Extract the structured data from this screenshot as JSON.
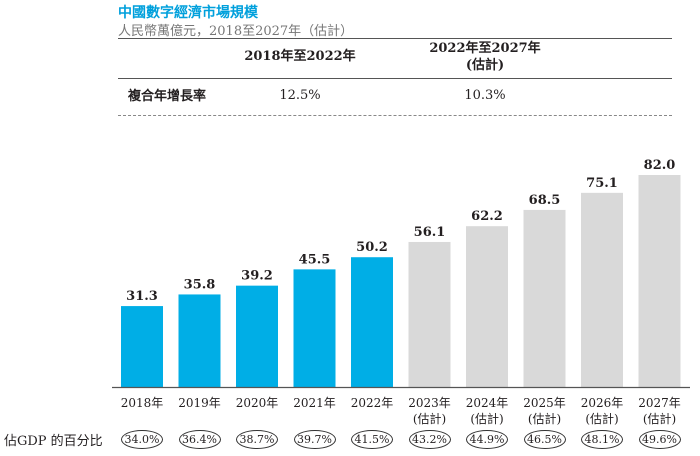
{
  "title": "中國數字經濟市場規模",
  "subtitle": "人民幣萬億元，2018至2027年（估計）",
  "cagr_table": {
    "columns": [
      "2018年至2022年",
      "2022年至2027年\n(估計)"
    ],
    "row_label": "複合年增長率",
    "values": [
      "12.5%",
      "10.3%"
    ]
  },
  "gdp_label": "佔GDP 的百分比",
  "colors": {
    "actual": "#00aee6",
    "forecast": "#d9d9d9",
    "title": "#00a0dc"
  },
  "chart_data": {
    "type": "bar",
    "categories": [
      "2018年",
      "2019年",
      "2020年",
      "2021年",
      "2022年",
      "2023年\n(估計)",
      "2024年\n(估計)",
      "2025年\n(估計)",
      "2026年\n(估計)",
      "2027年\n(估計)"
    ],
    "values": [
      31.3,
      35.8,
      39.2,
      45.5,
      50.2,
      56.1,
      62.2,
      68.5,
      75.1,
      82.0
    ],
    "value_labels": [
      "31.3",
      "35.8",
      "39.2",
      "45.5",
      "50.2",
      "56.1",
      "62.2",
      "68.5",
      "75.1",
      "82.0"
    ],
    "forecast": [
      false,
      false,
      false,
      false,
      false,
      true,
      true,
      true,
      true,
      true
    ],
    "gdp_share": [
      "34.0%",
      "36.4%",
      "38.7%",
      "39.7%",
      "41.5%",
      "43.2%",
      "44.9%",
      "46.5%",
      "48.1%",
      "49.6%"
    ],
    "ylim": [
      0,
      82
    ],
    "grid": false
  }
}
